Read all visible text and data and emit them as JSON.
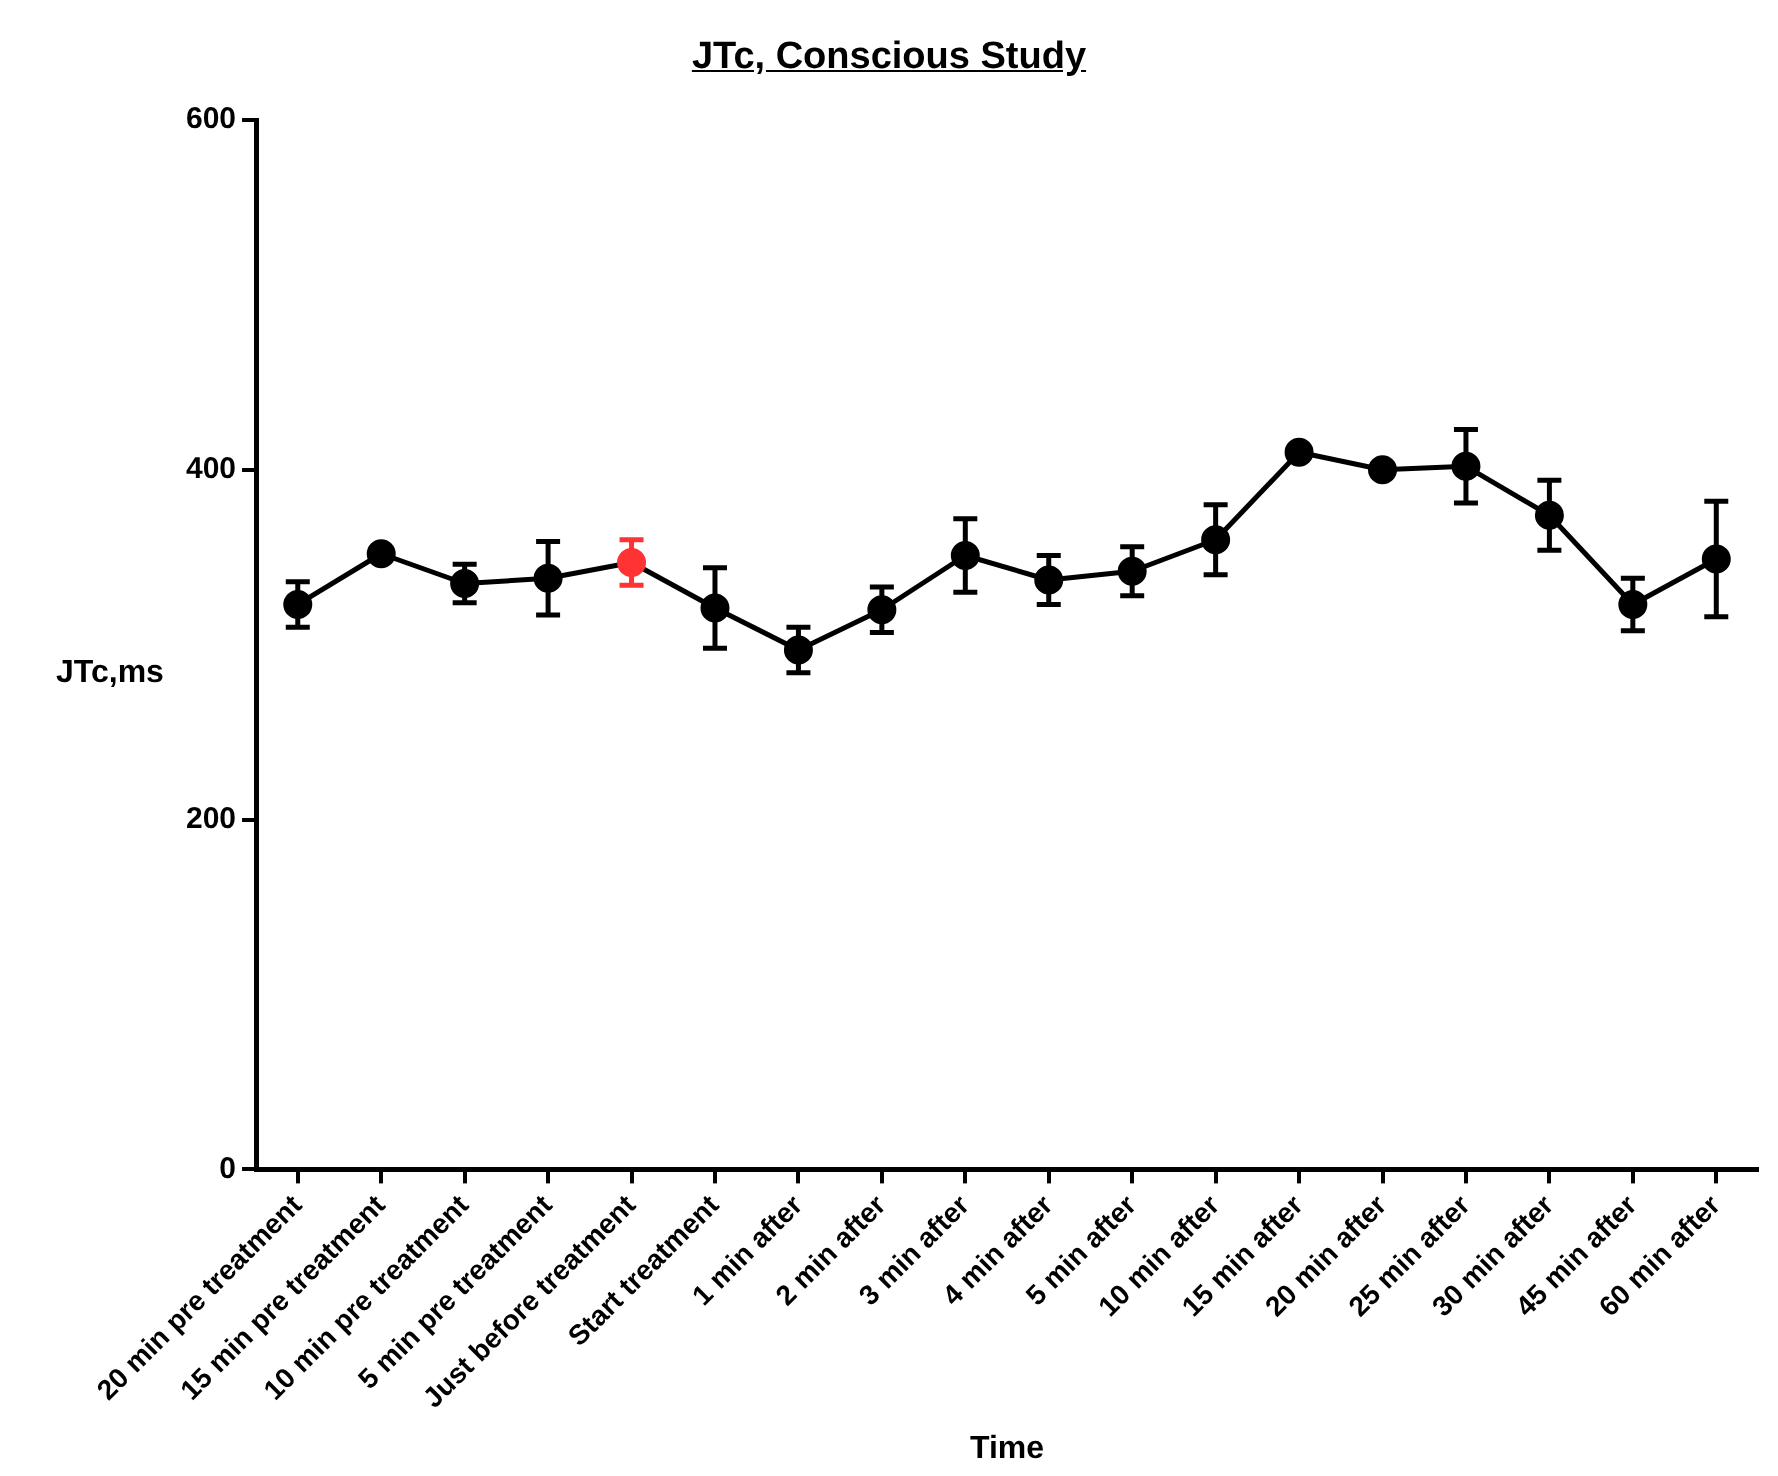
{
  "chart_data": {
    "type": "line",
    "title": "JTc, Conscious Study",
    "xlabel": "Time",
    "ylabel": "JTc,ms",
    "categories": [
      "20 min pre treatment",
      "15 min pre treatment",
      "10 min pre treatment",
      "5 min pre treatment",
      "Just before treatment",
      "Start treatment",
      "1 min after",
      "2 min after",
      "3 min after",
      "4 min after",
      "5 min after",
      "10 min after",
      "15 min after",
      "20 min after",
      "25 min after",
      "30 min after",
      "45 min after",
      "60 min after"
    ],
    "series": [
      {
        "color": "#000000",
        "colors": [
          "#000000",
          "#000000",
          "#000000",
          "#000000",
          "#ff3333",
          "#000000",
          "#000000",
          "#000000",
          "#000000",
          "#000000",
          "#000000",
          "#000000",
          "#000000",
          "#000000",
          "#000000",
          "#000000",
          "#000000",
          "#000000"
        ],
        "values": [
          323,
          352,
          335,
          338,
          347,
          321,
          297,
          320,
          351,
          337,
          342,
          360,
          410,
          400,
          402,
          374,
          323,
          349
        ],
        "errors": [
          13,
          2,
          11,
          21,
          13,
          23,
          13,
          13,
          21,
          14,
          14,
          20,
          3,
          3,
          21,
          20,
          15,
          33
        ]
      }
    ],
    "ylim": [
      0,
      600
    ],
    "yticks": [
      0,
      200,
      400,
      600
    ],
    "grid": false,
    "legend": false,
    "marker": "circle",
    "line_style": "solid"
  }
}
